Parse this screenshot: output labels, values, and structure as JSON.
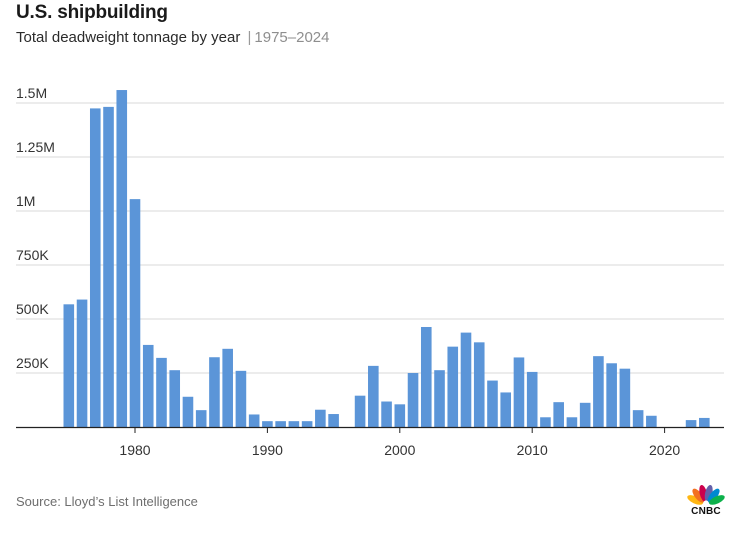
{
  "header": {
    "title": "U.S. shipbuilding",
    "subtitle": "Total deadweight tonnage by year",
    "separator": "|",
    "range": "1975–2024"
  },
  "footer": {
    "source": "Source: Lloyd’s List Intelligence",
    "logo_text": "CNBC",
    "logo_colors": [
      "#ffb612",
      "#f37021",
      "#cc004c",
      "#6460aa",
      "#0089d0",
      "#0db14b"
    ]
  },
  "chart_data": {
    "type": "bar",
    "bar_color": "#5b95d8",
    "grid": true,
    "ylim": [
      0,
      1500000
    ],
    "y_ticks": [
      {
        "value": 250000,
        "label": "250K"
      },
      {
        "value": 500000,
        "label": "500K"
      },
      {
        "value": 750000,
        "label": "750K"
      },
      {
        "value": 1000000,
        "label": "1M"
      },
      {
        "value": 1250000,
        "label": "1.25M"
      },
      {
        "value": 1500000,
        "label": "1.5M"
      }
    ],
    "x_ticks": [
      {
        "value": 1980,
        "label": "1980"
      },
      {
        "value": 1990,
        "label": "1990"
      },
      {
        "value": 2000,
        "label": "2000"
      },
      {
        "value": 2010,
        "label": "2010"
      },
      {
        "value": 2020,
        "label": "2020"
      }
    ],
    "xlim": [
      1975,
      2024
    ],
    "categories": [
      1975,
      1976,
      1977,
      1978,
      1979,
      1980,
      1981,
      1982,
      1983,
      1984,
      1985,
      1986,
      1987,
      1988,
      1989,
      1990,
      1991,
      1992,
      1993,
      1994,
      1995,
      1996,
      1997,
      1998,
      1999,
      2000,
      2001,
      2002,
      2003,
      2004,
      2005,
      2006,
      2007,
      2008,
      2009,
      2010,
      2011,
      2012,
      2013,
      2014,
      2015,
      2016,
      2017,
      2018,
      2019,
      2020,
      2021,
      2022,
      2023,
      2024
    ],
    "values": [
      568000,
      590000,
      1475000,
      1482000,
      1560000,
      1055000,
      380000,
      320000,
      263000,
      140000,
      78000,
      323000,
      362000,
      260000,
      58000,
      27000,
      27000,
      27000,
      27000,
      80000,
      60000,
      0,
      145000,
      283000,
      118000,
      105000,
      250000,
      463000,
      263000,
      372000,
      437000,
      392000,
      215000,
      160000,
      322000,
      255000,
      45000,
      115000,
      45000,
      112000,
      328000,
      295000,
      270000,
      78000,
      52000,
      0,
      0,
      32000,
      42000,
      0
    ]
  }
}
